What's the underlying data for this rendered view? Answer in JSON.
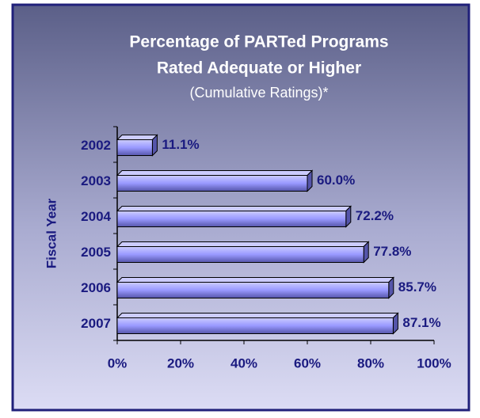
{
  "chart_data": {
    "type": "hbar",
    "title": "Percentage of PARTed Programs Rated Adequate or Higher",
    "subtitle": "(Cumulative Ratings)*",
    "y_label": "Fiscal Year",
    "categories": [
      "2002",
      "2003",
      "2004",
      "2005",
      "2006",
      "2007"
    ],
    "values": [
      11.1,
      60.0,
      72.2,
      77.8,
      85.7,
      87.1
    ],
    "value_labels": [
      "11.1%",
      "60.0%",
      "72.2%",
      "77.8%",
      "85.7%",
      "87.1%"
    ],
    "color": "#9999ff",
    "xlim": [
      0,
      100
    ],
    "xticks": [
      {
        "value": 0,
        "label": "0%"
      },
      {
        "value": 20,
        "label": "20%"
      },
      {
        "value": 40,
        "label": "40%"
      },
      {
        "value": 60,
        "label": "60%"
      },
      {
        "value": 80,
        "label": "80%"
      },
      {
        "value": 100,
        "label": "100%"
      }
    ]
  }
}
